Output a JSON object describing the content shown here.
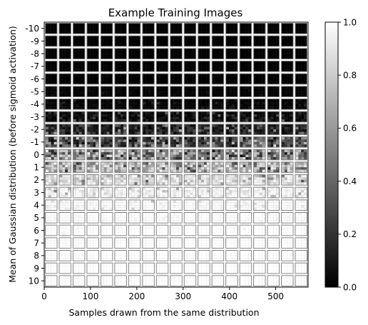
{
  "chart_data": {
    "type": "heatmap",
    "title": "Example Training Images",
    "xlabel": "Samples drawn from the same distribution",
    "ylabel": "Mean of Gaussian distribution (before sigmoid activation)",
    "xlim": [
      0,
      570
    ],
    "xticks": [
      0,
      100,
      200,
      300,
      400,
      500
    ],
    "rows": [
      "-10",
      "-9",
      "-8",
      "-7",
      "-6",
      "-5",
      "-4",
      "-3",
      "-2",
      "-1",
      "0",
      "1",
      "2",
      "3",
      "4",
      "5",
      "6",
      "7",
      "8",
      "9",
      "10"
    ],
    "means": [
      -10,
      -9,
      -8,
      -7,
      -6,
      -5,
      -4,
      -3,
      -2,
      -1,
      0,
      1,
      2,
      3,
      4,
      5,
      6,
      7,
      8,
      9,
      10
    ],
    "samples_per_row": 19,
    "colorbar": {
      "range": [
        0.0,
        1.0
      ],
      "ticks": [
        "0.0",
        "0.2",
        "0.4",
        "0.6",
        "0.8",
        "1.0"
      ],
      "colormap": "gray"
    },
    "frame_color": "#808080",
    "background": "#ffffff"
  }
}
